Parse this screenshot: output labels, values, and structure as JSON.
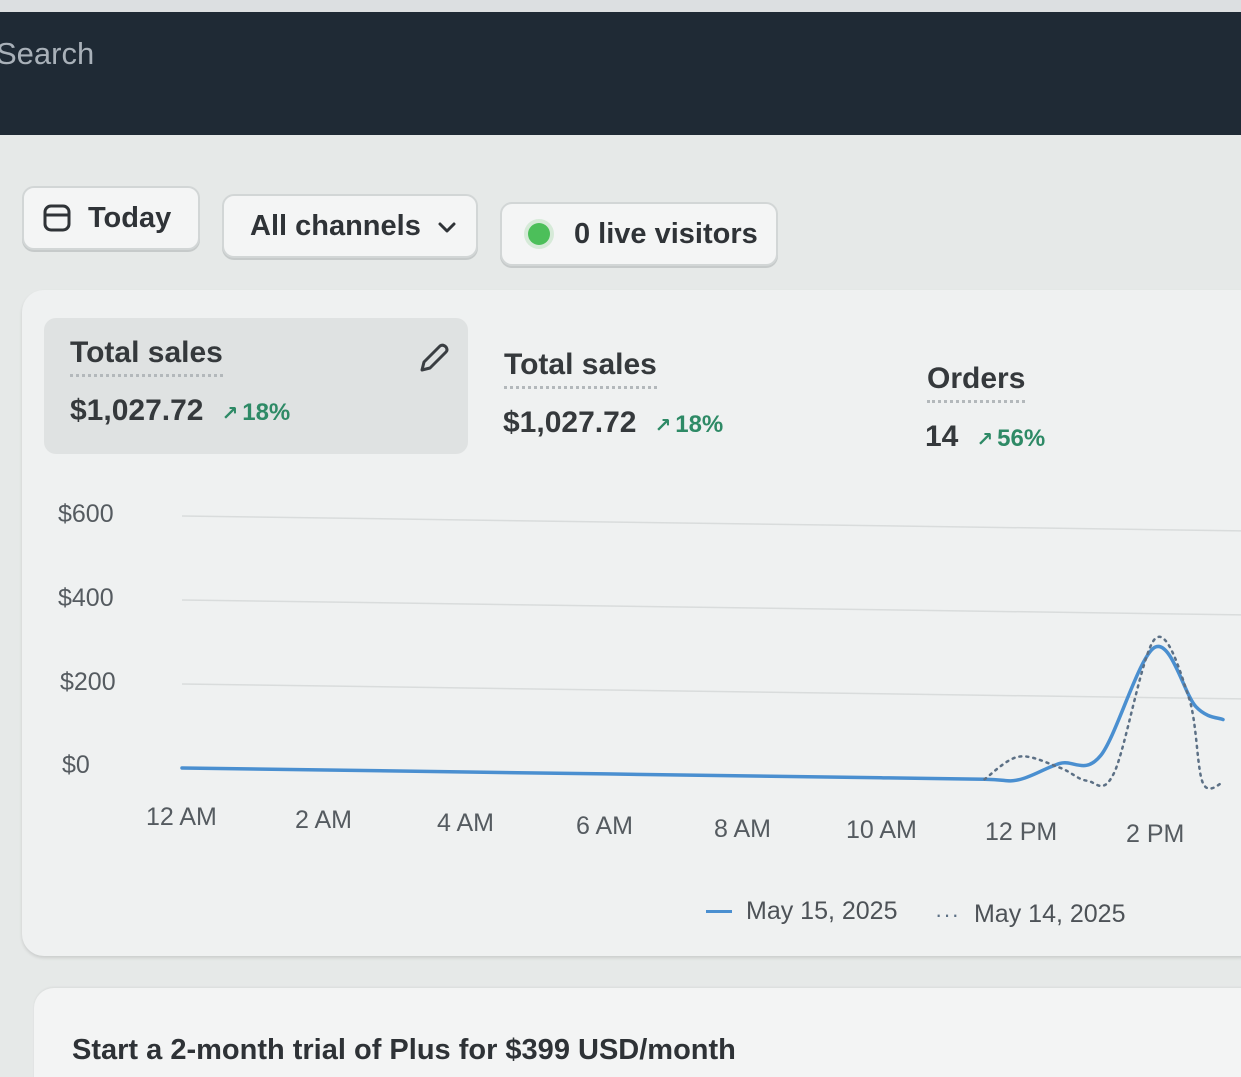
{
  "topbar": {
    "search_placeholder": "Search"
  },
  "filters": {
    "date_label": "Today",
    "channel_label": "All channels",
    "live_visitors_label": "0 live visitors"
  },
  "metrics": [
    {
      "label": "Total sales",
      "value": "$1,027.72",
      "delta": "18%",
      "selected": true
    },
    {
      "label": "Total sales",
      "value": "$1,027.72",
      "delta": "18%",
      "selected": false
    },
    {
      "label": "Orders",
      "value": "14",
      "delta": "56%",
      "selected": false
    }
  ],
  "colors": {
    "current_series": "#4a8fd0",
    "previous_series": "#5c7085",
    "delta_positive": "#2e8a66",
    "live_dot": "#4cbf5a"
  },
  "chart_data": {
    "type": "line",
    "y_tick_labels": [
      "$600",
      "$400",
      "$200",
      "$0"
    ],
    "x_tick_labels": [
      "12 AM",
      "2 AM",
      "4 AM",
      "6 AM",
      "8 AM",
      "10 AM",
      "12 PM",
      "2 PM"
    ],
    "ylim": [
      0,
      600
    ],
    "grid": true,
    "legend_position": "bottom-right",
    "series": [
      {
        "name": "May 15, 2025",
        "style": "solid",
        "points": [
          [
            0,
            0
          ],
          [
            2,
            0
          ],
          [
            4,
            0
          ],
          [
            6,
            0
          ],
          [
            8,
            0
          ],
          [
            10,
            0
          ],
          [
            11.5,
            0
          ],
          [
            12,
            0
          ],
          [
            12.6,
            40
          ],
          [
            13.2,
            60
          ],
          [
            14,
            320
          ],
          [
            14.6,
            180
          ],
          [
            15,
            150
          ]
        ]
      },
      {
        "name": "May 14, 2025",
        "style": "dotted",
        "points": [
          [
            11.5,
            0
          ],
          [
            12,
            55
          ],
          [
            12.6,
            30
          ],
          [
            13,
            0
          ],
          [
            13.4,
            20
          ],
          [
            14,
            340
          ],
          [
            14.5,
            200
          ],
          [
            14.7,
            0
          ],
          [
            15,
            0
          ]
        ]
      }
    ]
  },
  "promo": {
    "text": "Start a 2-month trial of Plus for $399 USD/month"
  }
}
